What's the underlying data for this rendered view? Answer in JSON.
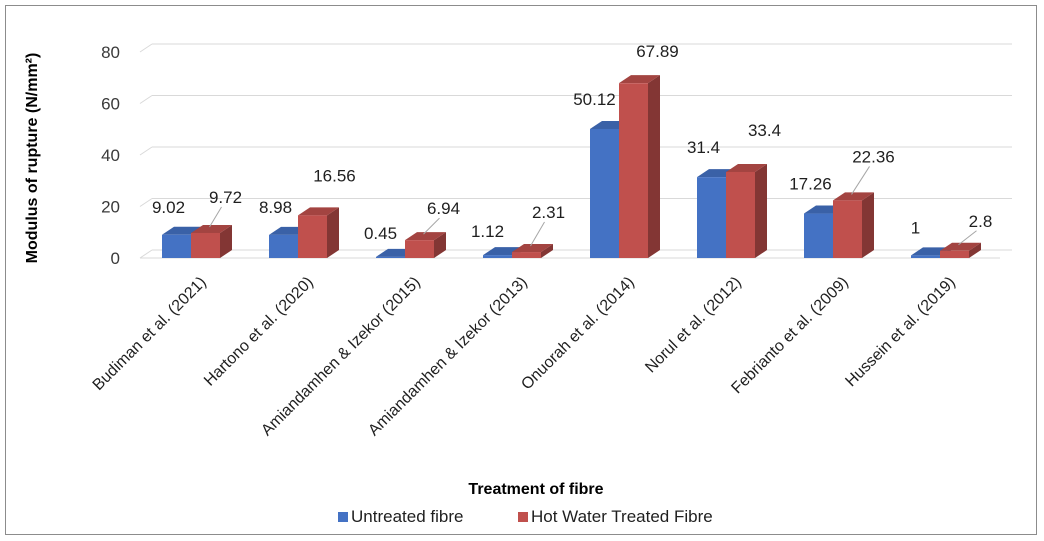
{
  "chart_data": {
    "type": "bar",
    "style": "3d-clustered-column",
    "categories": [
      "Budiman et al. (2021)",
      "Hartono et al. (2020)",
      "Amiandamhen & Izekor (2015)",
      "Amiandamhen & Izekor (2013)",
      "Onuorah et al. (2014)",
      "Norul et al. (2012)",
      "Febrianto et al. (2009)",
      "Hussein et al. (2019)"
    ],
    "series": [
      {
        "name": "Untreated fibre",
        "color": "#4472C4",
        "values": [
          9.02,
          8.98,
          0.45,
          1.12,
          50.12,
          31.4,
          17.26,
          1
        ]
      },
      {
        "name": "Hot Water Treated Fibre",
        "color": "#C0504D",
        "values": [
          9.72,
          16.56,
          6.94,
          2.31,
          67.89,
          33.4,
          22.36,
          2.8
        ]
      }
    ],
    "value_labels": [
      [
        "9.02",
        "8.98",
        "0.45",
        "1.12",
        "50.12",
        "31.4",
        "17.26",
        "1"
      ],
      [
        "9.72",
        "16.56",
        "6.94",
        "2.31",
        "67.89",
        "33.4",
        "22.36",
        "2.8"
      ]
    ],
    "title": "",
    "xlabel": "Treatment of fibre",
    "ylabel": "Modulus of rupture (N/mm²)",
    "ylim": [
      0,
      80
    ],
    "yticks": [
      0,
      20,
      40,
      60,
      80
    ],
    "grid": true,
    "legend_position": "bottom"
  }
}
